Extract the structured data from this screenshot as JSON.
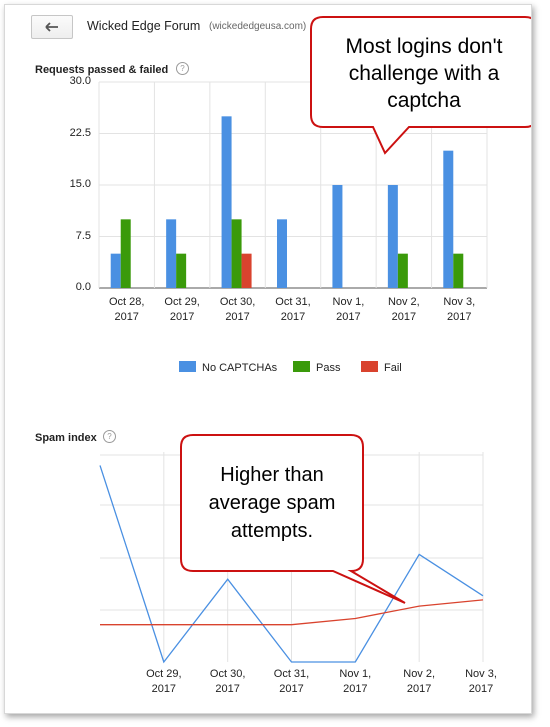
{
  "header": {
    "back_icon": "back-arrow-icon",
    "site_title": "Wicked Edge Forum",
    "site_domain": "(wickededgeusa.com)"
  },
  "requests_chart": {
    "title": "Requests passed & failed",
    "help_glyph": "?",
    "colors": {
      "no_captcha": "#4a90e2",
      "pass": "#3a9a0a",
      "fail": "#d9432e"
    }
  },
  "spam_chart": {
    "title": "Spam index",
    "help_glyph": "?",
    "colors": {
      "series": "#4a90e2",
      "average": "#d9432e"
    }
  },
  "callouts": {
    "top": [
      "Most logins don't",
      "challenge with a",
      "captcha"
    ],
    "bottom": [
      "Higher than",
      "average spam",
      "attempts."
    ]
  },
  "chart_data": [
    {
      "type": "bar",
      "title": "Requests passed & failed",
      "categories": [
        [
          "Oct 28,",
          "2017"
        ],
        [
          "Oct 29,",
          "2017"
        ],
        [
          "Oct 30,",
          "2017"
        ],
        [
          "Oct 31,",
          "2017"
        ],
        [
          "Nov 1,",
          "2017"
        ],
        [
          "Nov 2,",
          "2017"
        ],
        [
          "Nov 3,",
          "2017"
        ]
      ],
      "series": [
        {
          "name": "No CAPTCHAs",
          "values": [
            5,
            10,
            25,
            10,
            15,
            15,
            20
          ]
        },
        {
          "name": "Pass",
          "values": [
            10,
            5,
            10,
            0,
            0,
            5,
            5
          ]
        },
        {
          "name": "Fail",
          "values": [
            0,
            0,
            5,
            0,
            0,
            0,
            0
          ]
        }
      ],
      "yticks": [
        "0.0",
        "7.5",
        "15.0",
        "22.5",
        "30.0"
      ],
      "ylim": [
        0,
        30
      ],
      "grid": true,
      "legend": "bottom"
    },
    {
      "type": "line",
      "title": "Spam index",
      "categories": [
        [
          "Oct 29,",
          "2017"
        ],
        [
          "Oct 30,",
          "2017"
        ],
        [
          "Oct 31,",
          "2017"
        ],
        [
          "Nov 1,",
          "2017"
        ],
        [
          "Nov 2,",
          "2017"
        ],
        [
          "Nov 3,",
          "2017"
        ]
      ],
      "x": [
        0,
        1,
        2,
        3,
        4,
        5,
        6
      ],
      "series": [
        {
          "values": [
            0.95,
            0.0,
            0.4,
            0.0,
            0.0,
            0.52,
            0.32
          ]
        },
        {
          "values": [
            0.18,
            0.18,
            0.18,
            0.18,
            0.21,
            0.27,
            0.3
          ]
        }
      ],
      "ylim": [
        0,
        1
      ],
      "grid": true
    }
  ]
}
